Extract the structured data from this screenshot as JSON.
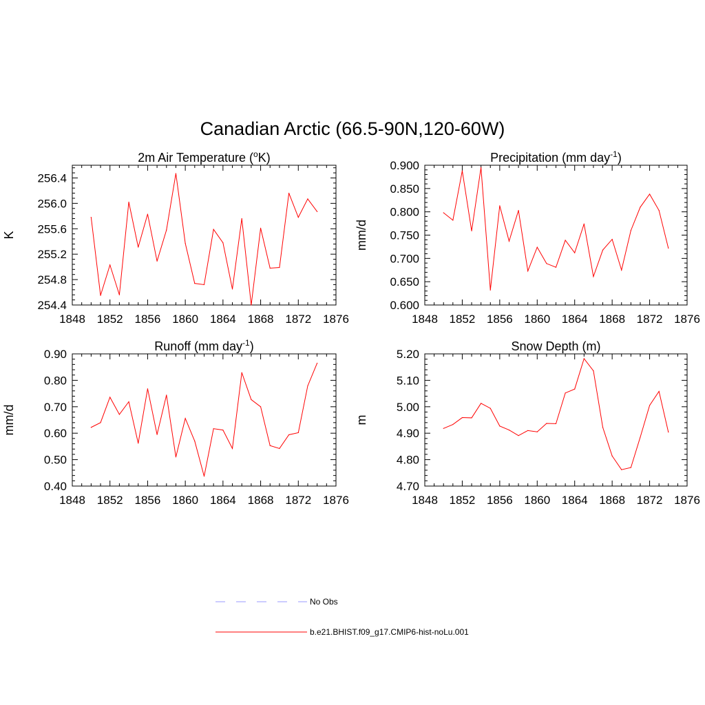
{
  "title": "Canadian Arctic (66.5-90N,120-60W)",
  "legend": {
    "items": [
      {
        "label": "No Obs",
        "color": "#9999ff",
        "style": "dashed"
      },
      {
        "label": "b.e21.BHIST.f09_g17.CMIP6-hist-noLu.001",
        "color": "#ff0000",
        "style": "solid"
      }
    ]
  },
  "chart_data": [
    {
      "type": "line",
      "title": "2m Air Temperature (",
      "title_sup": "o",
      "title_after": "K)",
      "ylabel": "K",
      "xlim": [
        1848,
        1876
      ],
      "ylim": [
        254.4,
        256.6
      ],
      "xticks": [
        "1848",
        "1852",
        "1856",
        "1860",
        "1864",
        "1868",
        "1872",
        "1876"
      ],
      "yticks": [
        "254.4",
        "254.8",
        "255.2",
        "255.6",
        "256.0",
        "256.4"
      ],
      "series": [
        {
          "color": "#ff0000",
          "x": [
            1850,
            1851,
            1852,
            1853,
            1854,
            1855,
            1856,
            1857,
            1858,
            1859,
            1860,
            1861,
            1862,
            1863,
            1864,
            1865,
            1866,
            1867,
            1868,
            1869,
            1870,
            1871,
            1872,
            1873,
            1874
          ],
          "y": [
            255.78,
            254.55,
            255.03,
            254.56,
            256.02,
            255.31,
            255.83,
            255.09,
            255.58,
            256.47,
            255.37,
            254.74,
            254.72,
            255.59,
            255.38,
            254.65,
            255.76,
            254.4,
            255.61,
            254.98,
            254.99,
            256.16,
            255.78,
            256.07,
            255.87
          ]
        }
      ]
    },
    {
      "type": "line",
      "title": "Precipitation (mm day",
      "title_sup": "-1",
      "title_after": ")",
      "ylabel": "mm/d",
      "xlim": [
        1848,
        1876
      ],
      "ylim": [
        0.6,
        0.9
      ],
      "xticks": [
        "1848",
        "1852",
        "1856",
        "1860",
        "1864",
        "1868",
        "1872",
        "1876"
      ],
      "yticks": [
        "0.600",
        "0.650",
        "0.700",
        "0.750",
        "0.800",
        "0.850",
        "0.900"
      ],
      "series": [
        {
          "color": "#ff0000",
          "x": [
            1850,
            1851,
            1852,
            1853,
            1854,
            1855,
            1856,
            1857,
            1858,
            1859,
            1860,
            1861,
            1862,
            1863,
            1864,
            1865,
            1866,
            1867,
            1868,
            1869,
            1870,
            1871,
            1872,
            1873,
            1874
          ],
          "y": [
            0.798,
            0.782,
            0.888,
            0.759,
            0.895,
            0.632,
            0.813,
            0.737,
            0.803,
            0.673,
            0.724,
            0.689,
            0.681,
            0.739,
            0.712,
            0.774,
            0.661,
            0.718,
            0.741,
            0.675,
            0.76,
            0.81,
            0.838,
            0.803,
            0.722
          ]
        }
      ]
    },
    {
      "type": "line",
      "title": "Runoff (mm day",
      "title_sup": "-1",
      "title_after": ")",
      "ylabel": "mm/d",
      "xlim": [
        1848,
        1876
      ],
      "ylim": [
        0.4,
        0.9
      ],
      "xticks": [
        "1848",
        "1852",
        "1856",
        "1860",
        "1864",
        "1868",
        "1872",
        "1876"
      ],
      "yticks": [
        "0.40",
        "0.50",
        "0.60",
        "0.70",
        "0.80",
        "0.90"
      ],
      "series": [
        {
          "color": "#ff0000",
          "x": [
            1850,
            1851,
            1852,
            1853,
            1854,
            1855,
            1856,
            1857,
            1858,
            1859,
            1860,
            1861,
            1862,
            1863,
            1864,
            1865,
            1866,
            1867,
            1868,
            1869,
            1870,
            1871,
            1872,
            1873,
            1874
          ],
          "y": [
            0.622,
            0.64,
            0.736,
            0.671,
            0.719,
            0.562,
            0.768,
            0.595,
            0.744,
            0.51,
            0.656,
            0.57,
            0.437,
            0.617,
            0.612,
            0.542,
            0.829,
            0.727,
            0.7,
            0.553,
            0.542,
            0.594,
            0.602,
            0.779,
            0.865
          ]
        }
      ]
    },
    {
      "type": "line",
      "title": "Snow Depth (m)",
      "title_sup": "",
      "title_after": "",
      "ylabel": "m",
      "xlim": [
        1848,
        1876
      ],
      "ylim": [
        4.7,
        5.2
      ],
      "xticks": [
        "1848",
        "1852",
        "1856",
        "1860",
        "1864",
        "1868",
        "1872",
        "1876"
      ],
      "yticks": [
        "4.70",
        "4.80",
        "4.90",
        "5.00",
        "5.10",
        "5.20"
      ],
      "series": [
        {
          "color": "#ff0000",
          "x": [
            1850,
            1851,
            1852,
            1853,
            1854,
            1855,
            1856,
            1857,
            1858,
            1859,
            1860,
            1861,
            1862,
            1863,
            1864,
            1865,
            1866,
            1867,
            1868,
            1869,
            1870,
            1871,
            1872,
            1873,
            1874
          ],
          "y": [
            4.918,
            4.933,
            4.959,
            4.958,
            5.013,
            4.994,
            4.927,
            4.912,
            4.891,
            4.91,
            4.905,
            4.937,
            4.936,
            5.052,
            5.067,
            5.182,
            5.136,
            4.922,
            4.814,
            4.762,
            4.77,
            4.885,
            5.005,
            5.058,
            4.904
          ]
        }
      ]
    }
  ]
}
